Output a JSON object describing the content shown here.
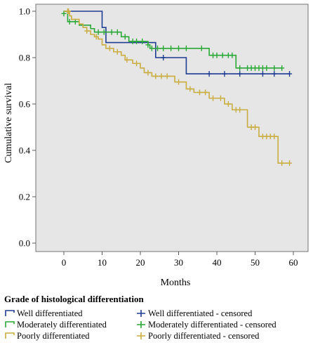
{
  "chart_data": {
    "type": "line",
    "subtype": "kaplan-meier",
    "xlabel": "Months",
    "ylabel": "Cumulative survival",
    "xlim": [
      0,
      60
    ],
    "ylim": [
      0,
      1
    ],
    "x_ticks": [
      0,
      10,
      20,
      30,
      40,
      50,
      60
    ],
    "y_ticks": [
      0.0,
      0.2,
      0.4,
      0.6,
      0.8,
      1.0
    ],
    "y_tick_labels": [
      "0.0",
      "0.2",
      "0.4",
      "0.6",
      "0.8",
      "1.0"
    ],
    "grid": false,
    "plot_background": "#e6e6e6",
    "legend_title": "Grade of histological differentiation",
    "legend_position": "bottom",
    "series": [
      {
        "name": "Well differentiated",
        "censored_label": "Well differentiated - censored",
        "color": "#1f3c93",
        "steps": [
          [
            0,
            1.0
          ],
          [
            10,
            0.93
          ],
          [
            11,
            0.865
          ],
          [
            24,
            0.8
          ],
          [
            32,
            0.73
          ],
          [
            59,
            0.73
          ]
        ],
        "censored": [
          [
            26,
            0.8
          ],
          [
            38,
            0.73
          ],
          [
            42,
            0.73
          ],
          [
            46,
            0.73
          ],
          [
            52,
            0.73
          ],
          [
            55,
            0.73
          ],
          [
            59,
            0.73
          ]
        ]
      },
      {
        "name": "Moderately differentiated",
        "censored_label": "Moderately differentiated - censored",
        "color": "#29a836",
        "steps": [
          [
            0,
            1.0
          ],
          [
            1,
            0.955
          ],
          [
            4,
            0.94
          ],
          [
            7,
            0.925
          ],
          [
            8,
            0.91
          ],
          [
            15,
            0.89
          ],
          [
            17,
            0.87
          ],
          [
            22,
            0.855
          ],
          [
            22.5,
            0.84
          ],
          [
            38,
            0.81
          ],
          [
            45,
            0.755
          ],
          [
            57,
            0.755
          ]
        ],
        "censored": [
          [
            0,
            0.99
          ],
          [
            1.5,
            0.955
          ],
          [
            3,
            0.955
          ],
          [
            9,
            0.91
          ],
          [
            10.5,
            0.91
          ],
          [
            12.5,
            0.91
          ],
          [
            14,
            0.91
          ],
          [
            16,
            0.89
          ],
          [
            18,
            0.87
          ],
          [
            19,
            0.87
          ],
          [
            20.5,
            0.87
          ],
          [
            22,
            0.855
          ],
          [
            23,
            0.84
          ],
          [
            24.5,
            0.84
          ],
          [
            26,
            0.84
          ],
          [
            28,
            0.84
          ],
          [
            30,
            0.84
          ],
          [
            32,
            0.84
          ],
          [
            36,
            0.84
          ],
          [
            39,
            0.81
          ],
          [
            40,
            0.81
          ],
          [
            41.5,
            0.81
          ],
          [
            43,
            0.81
          ],
          [
            44,
            0.81
          ],
          [
            46,
            0.755
          ],
          [
            48,
            0.755
          ],
          [
            49,
            0.755
          ],
          [
            50,
            0.755
          ],
          [
            51,
            0.755
          ],
          [
            52,
            0.755
          ],
          [
            53,
            0.755
          ],
          [
            55,
            0.755
          ],
          [
            57,
            0.755
          ]
        ]
      },
      {
        "name": "Poorly differentiated",
        "censored_label": "Poorly differentiated - censored",
        "color": "#c9ad3f",
        "steps": [
          [
            0,
            1.0
          ],
          [
            1.5,
            0.98
          ],
          [
            2,
            0.965
          ],
          [
            4,
            0.945
          ],
          [
            5,
            0.93
          ],
          [
            6,
            0.915
          ],
          [
            7,
            0.9
          ],
          [
            8,
            0.89
          ],
          [
            9,
            0.88
          ],
          [
            10,
            0.855
          ],
          [
            11,
            0.84
          ],
          [
            13,
            0.825
          ],
          [
            15,
            0.81
          ],
          [
            16,
            0.79
          ],
          [
            18,
            0.775
          ],
          [
            20,
            0.755
          ],
          [
            21,
            0.735
          ],
          [
            23,
            0.72
          ],
          [
            29,
            0.695
          ],
          [
            32,
            0.665
          ],
          [
            34,
            0.65
          ],
          [
            38,
            0.625
          ],
          [
            42,
            0.6
          ],
          [
            44,
            0.575
          ],
          [
            48,
            0.5
          ],
          [
            51,
            0.46
          ],
          [
            56,
            0.345
          ],
          [
            59,
            0.345
          ]
        ],
        "censored": [
          [
            1,
            1.0
          ],
          [
            1.2,
            1.0
          ],
          [
            6,
            0.915
          ],
          [
            8.5,
            0.89
          ],
          [
            12,
            0.84
          ],
          [
            14,
            0.825
          ],
          [
            16.5,
            0.79
          ],
          [
            19,
            0.775
          ],
          [
            22,
            0.735
          ],
          [
            24,
            0.72
          ],
          [
            25.5,
            0.72
          ],
          [
            27,
            0.72
          ],
          [
            30,
            0.695
          ],
          [
            33,
            0.665
          ],
          [
            35.5,
            0.65
          ],
          [
            37,
            0.65
          ],
          [
            39,
            0.625
          ],
          [
            41,
            0.625
          ],
          [
            43,
            0.6
          ],
          [
            45,
            0.575
          ],
          [
            46,
            0.575
          ],
          [
            49,
            0.5
          ],
          [
            50,
            0.5
          ],
          [
            52,
            0.46
          ],
          [
            53,
            0.46
          ],
          [
            54,
            0.46
          ],
          [
            55,
            0.46
          ],
          [
            57,
            0.345
          ],
          [
            59,
            0.345
          ]
        ]
      }
    ]
  }
}
